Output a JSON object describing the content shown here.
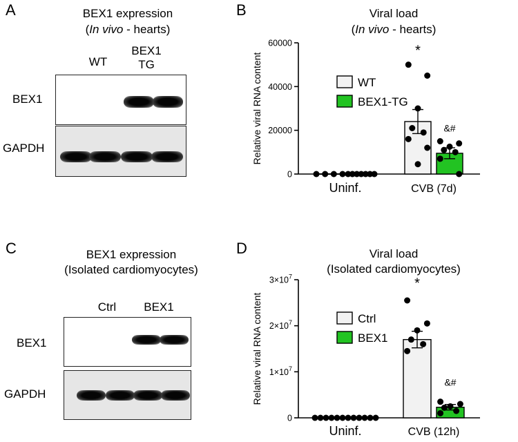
{
  "colors": {
    "wt_fill": "#f2f2f2",
    "tg_fill": "#22c322",
    "point": "#000000",
    "axis": "#000000",
    "blot_bg": "#e6e6e6"
  },
  "panel_a": {
    "letter": "A",
    "title_line1": "BEX1 expression",
    "title_line2_italic": "In vivo",
    "title_line2_rest": " - hearts)",
    "title_line2_open": "(",
    "lane_wt": "WT",
    "lane_tg_line1": "BEX1",
    "lane_tg_line2": "TG",
    "row1": "BEX1",
    "row2": "GAPDH"
  },
  "panel_c": {
    "letter": "C",
    "title_line1": "BEX1 expression",
    "title_line2": "(Isolated cardiomyocytes)",
    "lane_ctrl": "Ctrl",
    "lane_bex1": "BEX1",
    "row1": "BEX1",
    "row2": "GAPDH"
  },
  "panel_b": {
    "letter": "B",
    "title_line1": "Viral load",
    "title_line2_open": "(",
    "title_line2_italic": "In vivo",
    "title_line2_rest": " - hearts)"
  },
  "panel_d": {
    "letter": "D",
    "title_line1": "Viral load",
    "title_line2": "(Isolated cardiomyocytes)"
  },
  "chart_data": [
    {
      "id": "B",
      "type": "bar",
      "title": "Viral load (In vivo - hearts)",
      "ylabel": "Relative viral RNA content",
      "xlabel": "",
      "categories": [
        "Uninf.",
        "CVB (7d)"
      ],
      "ylim": [
        0,
        60000
      ],
      "yticks": [
        0,
        20000,
        40000,
        60000
      ],
      "ytick_labels": [
        "0",
        "20000",
        "40000",
        "60000"
      ],
      "legend": [
        "WT",
        "BEX1-TG"
      ],
      "legend_position": "top-left",
      "series": [
        {
          "name": "WT",
          "color": "#f2f2f2",
          "values": [
            0,
            24000
          ],
          "sem": [
            0,
            5500
          ],
          "points": [
            [
              0,
              0,
              0,
              0
            ],
            [
              50000,
              45000,
              30000,
              21000,
              19000,
              16000,
              12000,
              4500
            ]
          ]
        },
        {
          "name": "BEX1-TG",
          "color": "#22c322",
          "values": [
            0,
            9500
          ],
          "sem": [
            0,
            2500
          ],
          "points": [
            [
              0,
              0,
              0,
              0,
              0,
              0,
              0
            ],
            [
              15000,
              14000,
              12500,
              11000,
              10000,
              7000,
              0
            ]
          ]
        }
      ],
      "annotations": [
        {
          "text": "*",
          "category": 1,
          "series": 0,
          "value": 57000
        },
        {
          "text": "&#",
          "category": 1,
          "series": 1,
          "value": 19500
        }
      ]
    },
    {
      "id": "D",
      "type": "bar",
      "title": "Viral load (Isolated cardiomyocytes)",
      "ylabel": "Relative viral RNA content",
      "xlabel": "",
      "categories": [
        "Uninf.",
        "CVB (12h)"
      ],
      "ylim": [
        0,
        30000000
      ],
      "yticks": [
        0,
        10000000,
        20000000,
        30000000
      ],
      "ytick_labels": [
        "0",
        "1×10",
        "2×10",
        "3×10"
      ],
      "ytick_exponent": "7",
      "legend": [
        "Ctrl",
        "BEX1"
      ],
      "legend_position": "top-left",
      "series": [
        {
          "name": "Ctrl",
          "color": "#f2f2f2",
          "values": [
            0,
            17000000
          ],
          "sem": [
            0,
            1800000
          ],
          "points": [
            [
              0,
              0,
              0,
              0,
              0,
              0
            ],
            [
              25500000,
              20500000,
              19000000,
              17000000,
              16000000,
              14500000
            ]
          ]
        },
        {
          "name": "BEX1",
          "color": "#22c322",
          "values": [
            0,
            2300000
          ],
          "sem": [
            0,
            600000
          ],
          "points": [
            [
              0,
              0,
              0,
              0,
              0,
              0
            ],
            [
              3500000,
              3000000,
              2500000,
              2200000,
              1500000,
              1000000
            ]
          ]
        }
      ],
      "annotations": [
        {
          "text": "*",
          "category": 1,
          "series": 0,
          "value": 29500000
        },
        {
          "text": "&#",
          "category": 1,
          "series": 1,
          "value": 7000000
        }
      ]
    }
  ]
}
